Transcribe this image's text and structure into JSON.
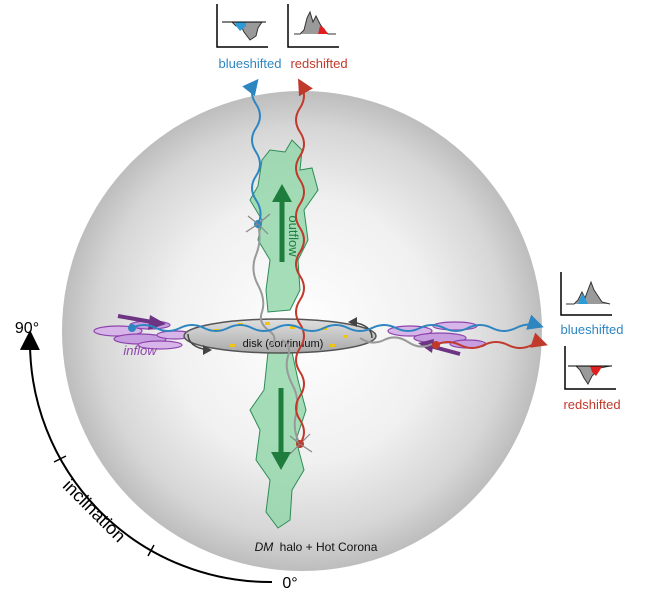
{
  "top_labels": {
    "blueshifted": "blueshifted",
    "redshifted": "redshifted"
  },
  "right_labels": {
    "blueshifted": "blueshifted",
    "redshifted": "redshifted"
  },
  "labels": {
    "outflow": "outflow",
    "disk": "disk (continuum)",
    "inflow": "inflow",
    "halo_dm": "DM",
    "halo_rest": "halo + Hot Corona",
    "inclination": "inclination",
    "angle_90": "90°",
    "angle_0": "0°"
  },
  "colors": {
    "blueshift": "#2e86c1",
    "redshift": "#c0392b",
    "outflow_green": "#2e8b57",
    "outflow_fill": "#8fd6a8",
    "inflow_purple": "#8e44ad",
    "sphere": "#cfcfcf",
    "disk": "#c8c8c8",
    "dust_yellow": "#f1c40f",
    "gray_ray": "#999999"
  }
}
